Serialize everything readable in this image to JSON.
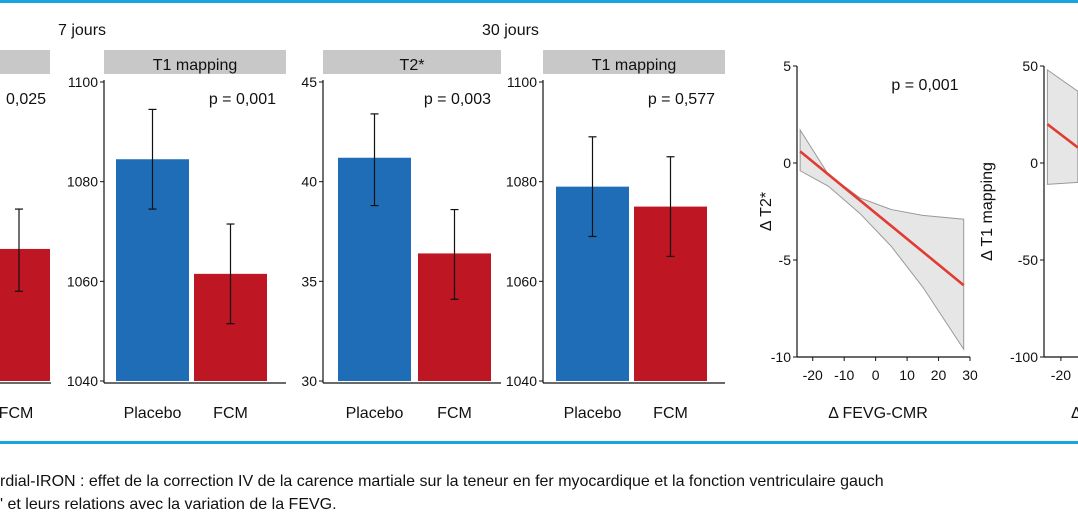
{
  "figure": {
    "group_labels": [
      "7 jours",
      "30 jours"
    ],
    "caption_line1": "rdial-IRON : effet de la correction IV de la carence martiale sur la teneur en fer myocardique et la fonction ventriculaire gauch",
    "caption_line2": "' et leurs relations avec la variation de la FEVG."
  },
  "colors": {
    "placebo": "#1f6db6",
    "fcm": "#be1622",
    "panel_header": "#c8c8c8",
    "regression_line": "#e03c31",
    "confidence_band": "#e6e6e6",
    "accent_rule": "#1aa3dc"
  },
  "chart_data": [
    {
      "type": "bar",
      "group": "7 jours",
      "title": "",
      "p_value": "0,025",
      "categories": [
        "",
        "FCM"
      ],
      "values": [
        null,
        1066.5
      ],
      "error_low": [
        null,
        1058
      ],
      "error_high": [
        null,
        1074.5
      ],
      "ylim": [
        1040,
        1100
      ],
      "yticks": []
    },
    {
      "type": "bar",
      "group": "7 jours",
      "title": "T1 mapping",
      "p_value": "p = 0,001",
      "categories": [
        "Placebo",
        "FCM"
      ],
      "values": [
        1084.5,
        1061.5
      ],
      "error_low": [
        1074.5,
        1051.5
      ],
      "error_high": [
        1094.5,
        1071.5
      ],
      "ylim": [
        1040,
        1100
      ],
      "yticks": [
        "1040",
        "1060",
        "1080",
        "1100"
      ]
    },
    {
      "type": "bar",
      "group": "30 jours",
      "title": "T2*",
      "p_value": "p = 0,003",
      "categories": [
        "Placebo",
        "FCM"
      ],
      "values": [
        41.2,
        36.4
      ],
      "error_low": [
        38.8,
        34.1
      ],
      "error_high": [
        43.4,
        38.6
      ],
      "ylim": [
        30,
        45
      ],
      "yticks": [
        "30",
        "35",
        "40",
        "45"
      ]
    },
    {
      "type": "bar",
      "group": "30 jours",
      "title": "T1 mapping",
      "p_value": "p = 0,577",
      "categories": [
        "Placebo",
        "FCM"
      ],
      "values": [
        1079,
        1075
      ],
      "error_low": [
        1069,
        1065
      ],
      "error_high": [
        1089,
        1085
      ],
      "ylim": [
        1040,
        1100
      ],
      "yticks": [
        "1040",
        "1060",
        "1080",
        "1100"
      ]
    },
    {
      "type": "line",
      "title": "",
      "p_value": "p = 0,001",
      "xlabel": "Δ FEVG-CMR",
      "ylabel": "Δ T2*",
      "xlim": [
        -25,
        30
      ],
      "ylim": [
        -10,
        5
      ],
      "xticks": [
        "-20",
        "-10",
        "0",
        "10",
        "20",
        "30"
      ],
      "yticks": [
        "-10",
        "-5",
        "0",
        "5"
      ],
      "line": {
        "x": [
          -24,
          28
        ],
        "y": [
          0.6,
          -6.3
        ]
      },
      "band": {
        "x": [
          -24,
          -15,
          -5,
          5,
          15,
          28
        ],
        "upper": [
          1.7,
          -0.6,
          -1.8,
          -2.4,
          -2.7,
          -2.9
        ],
        "lower": [
          -0.4,
          -1.2,
          -2.6,
          -4.3,
          -6.4,
          -9.6
        ]
      }
    },
    {
      "type": "line",
      "title": "",
      "p_value": "",
      "xlabel": "Δ",
      "ylabel": "Δ T1 mapping",
      "xlim": [
        -25,
        30
      ],
      "ylim": [
        -100,
        50
      ],
      "xticks": [
        "-20"
      ],
      "yticks": [
        "-100",
        "-50",
        "0",
        "50"
      ],
      "line": {
        "x": [
          -24,
          -15
        ],
        "y": [
          20,
          8
        ]
      },
      "band": {
        "x": [
          -24,
          -15
        ],
        "upper": [
          48,
          37
        ],
        "lower": [
          -11,
          -10
        ]
      }
    }
  ]
}
